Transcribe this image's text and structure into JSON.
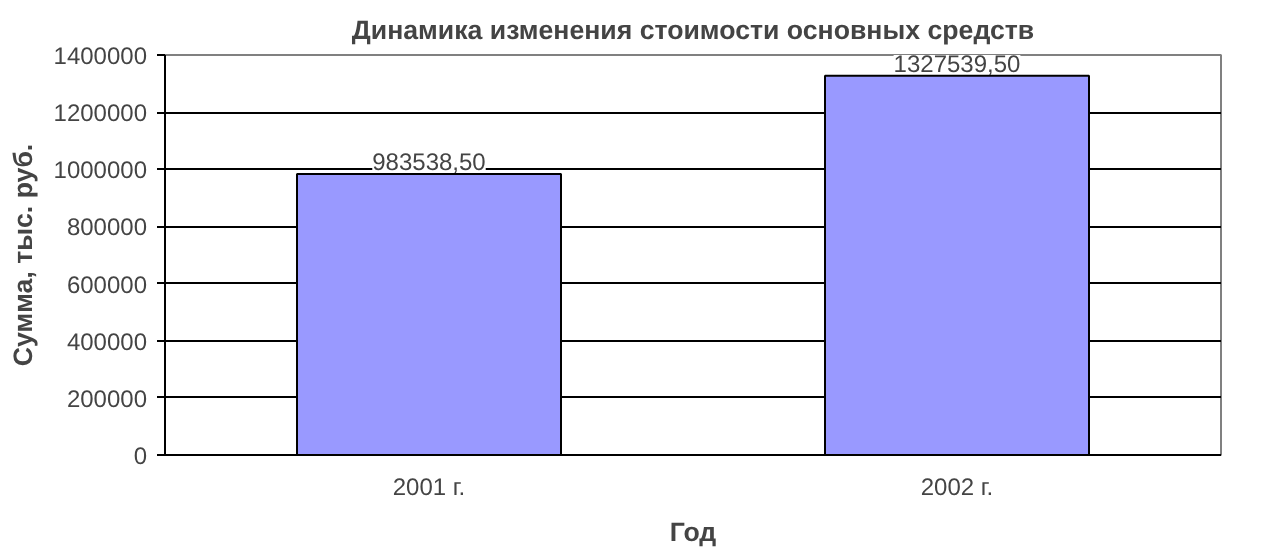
{
  "chart_data": {
    "type": "bar",
    "title": "Динамика изменения стоимости основных средств",
    "xlabel": "Год",
    "ylabel": "Сумма, тыс. руб.",
    "categories": [
      "2001 г.",
      "2002 г."
    ],
    "values": [
      983538.5,
      1327539.5
    ],
    "value_labels": [
      "983538,50",
      "1327539,50"
    ],
    "color": "#9999ff",
    "ylim": [
      0,
      1400000
    ],
    "yticks": [
      0,
      200000,
      400000,
      600000,
      800000,
      1000000,
      1200000,
      1400000
    ],
    "grid": "y"
  }
}
